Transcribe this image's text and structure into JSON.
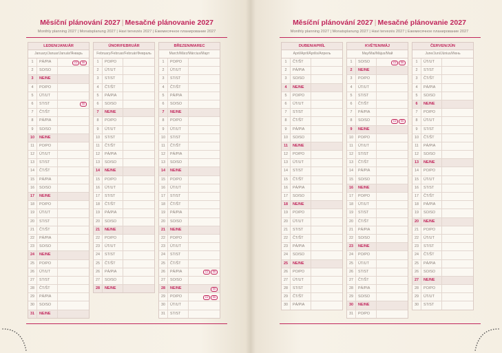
{
  "left": {
    "title_cz": "Měsíční plánování 2027",
    "title_sk": "Mesačné plánovanie 2027",
    "subtitle": "Monthly planning 2027 | Monatsplanung 2027 | Havi tervezés 2027 | Ежемесячное планирование 2027"
  },
  "right": {
    "title_cz": "Měsíční plánování 2027",
    "title_sk": "Mesačné plánovanie 2027",
    "subtitle": "Monthly planning 2027 | Monatsplanung 2027 | Havi tervezés 2027 | Ежемесячное планирование 2027"
  },
  "weekday_labels": {
    "P": "PO/PO",
    "U": "ÚT/UT",
    "S": "ST/ST",
    "C": "ČT/ŠT",
    "A": "PÁ/PIA",
    "O": "SO/SO",
    "N": "NE/NE"
  },
  "colors": {
    "accent": "#c0245a",
    "paper": "#f7f2e8",
    "sunday_row": "#f0e6e1"
  },
  "months": [
    {
      "name": "LEDEN/JANUÁR",
      "sub": "January/Januar/Január/Январь",
      "days": "AONPUSCAONPUSCAONPUSCAONPUSCAON",
      "holidays": {
        "1": [
          "CZ",
          "SK"
        ],
        "6": [
          "SK"
        ]
      }
    },
    {
      "name": "ÚNOR/FEBRUÁR",
      "sub": "February/Februar/Február/Февраль",
      "days": "PUSCAONPUSCAONPUSCAONPUSCAON",
      "holidays": {}
    },
    {
      "name": "BŘEZEN/MAREC",
      "sub": "March/März/Március/Март",
      "days": "PUSCAONPUSCAONPUSCAONPUSCAONPUS",
      "holidays": {
        "26": [
          "CZ",
          "SK"
        ],
        "28": [
          "SK"
        ],
        "29": [
          "CZ",
          "SK"
        ]
      }
    },
    {
      "name": "DUBEN/APRÍL",
      "sub": "April/April/Április/Апрель",
      "days": "CAONPUSCAONPUSCAONPUSCAONPUSCA",
      "holidays": {}
    },
    {
      "name": "KVĚTEN/MÁJ",
      "sub": "May/Mai/Május/Май",
      "days": "ONPUSCAONPUSCAONPUSCAONPUSCAONP",
      "holidays": {
        "1": [
          "CZ",
          "SK"
        ],
        "8": [
          "CZ",
          "SK"
        ]
      }
    },
    {
      "name": "ČERVEN/JÚN",
      "sub": "June/Juni/Június/Июнь",
      "days": "USCAONPUSCAONPUSCAONPUSCAONPUS",
      "holidays": {}
    }
  ]
}
